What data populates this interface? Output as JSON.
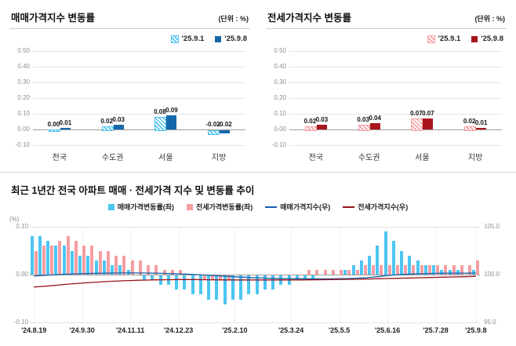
{
  "chart_data": [
    {
      "type": "bar",
      "title": "매매가격지수 변동률",
      "unit": "(단위 : %)",
      "categories": [
        "전국",
        "수도권",
        "서울",
        "지방"
      ],
      "series": [
        {
          "name": "'25.9.1",
          "color": "#54c3ee",
          "hatch": true,
          "values": [
            0.0,
            0.02,
            0.08,
            -0.02
          ]
        },
        {
          "name": "'25.9.8",
          "color": "#1668ab",
          "hatch": false,
          "values": [
            0.01,
            0.03,
            0.09,
            -0.02
          ]
        }
      ],
      "ylim": [
        -0.1,
        0.5
      ],
      "yticks": [
        0.5,
        0.4,
        0.3,
        0.2,
        0.1,
        0.0,
        -0.1
      ]
    },
    {
      "type": "bar",
      "title": "전세가격지수 변동률",
      "unit": "(단위 : %)",
      "categories": [
        "전국",
        "수도권",
        "서울",
        "지방"
      ],
      "series": [
        {
          "name": "'25.9.1",
          "color": "#f4a2a6",
          "hatch": true,
          "values": [
            0.02,
            0.03,
            0.07,
            0.02
          ]
        },
        {
          "name": "'25.9.8",
          "color": "#a8161c",
          "hatch": false,
          "values": [
            0.03,
            0.04,
            0.07,
            0.01
          ]
        }
      ],
      "ylim": [
        -0.1,
        0.5
      ],
      "yticks": [
        0.5,
        0.4,
        0.3,
        0.2,
        0.1,
        0.0,
        -0.1
      ]
    },
    {
      "type": "combo",
      "title": "최근 1년간 전국 아파트 매매 · 전세가격 지수 및 변동률 추이",
      "y_left": {
        "label": "(%)",
        "lim": [
          -0.1,
          0.1
        ],
        "ticks": [
          0.1,
          0.0,
          -0.1
        ]
      },
      "y_right": {
        "lim": [
          95.0,
          105.0
        ],
        "ticks": [
          105.0,
          100.0,
          95.0
        ]
      },
      "x_tick_labels": [
        "'24.8.19",
        "'24.9.30",
        "'24.11.11",
        "'24.12.23",
        "'25.2.10",
        "'25.3.24",
        "'25.5.5",
        "'25.6.16",
        "'25.7.28",
        "'25.9.8"
      ],
      "x_tick_indices": [
        0,
        6,
        12,
        18,
        25,
        32,
        38,
        44,
        50,
        55
      ],
      "bar_series": [
        {
          "name": "매매가격변동률(좌)",
          "color": "#4cc5f2",
          "values": [
            0.08,
            0.08,
            0.07,
            0.06,
            0.06,
            0.05,
            0.04,
            0.04,
            0.03,
            0.03,
            0.02,
            0.02,
            0.01,
            0.0,
            -0.01,
            -0.01,
            -0.02,
            -0.02,
            -0.03,
            -0.03,
            -0.04,
            -0.04,
            -0.05,
            -0.05,
            -0.06,
            -0.05,
            -0.05,
            -0.04,
            -0.04,
            -0.03,
            -0.03,
            -0.02,
            -0.02,
            -0.01,
            -0.01,
            -0.01,
            0.0,
            0.0,
            0.0,
            0.01,
            0.02,
            0.03,
            0.04,
            0.06,
            0.09,
            0.07,
            0.05,
            0.04,
            0.03,
            0.02,
            0.02,
            0.01,
            0.01,
            0.01,
            0.0,
            0.01
          ]
        },
        {
          "name": "전세가격변동률(좌)",
          "color": "#f59da1",
          "values": [
            0.05,
            0.06,
            0.06,
            0.07,
            0.08,
            0.07,
            0.06,
            0.06,
            0.05,
            0.05,
            0.04,
            0.04,
            0.03,
            0.03,
            0.02,
            0.02,
            0.01,
            0.01,
            0.01,
            0.0,
            0.0,
            -0.01,
            -0.01,
            -0.01,
            -0.01,
            0.0,
            0.0,
            0.0,
            0.0,
            0.0,
            0.0,
            0.0,
            0.0,
            0.0,
            0.01,
            0.01,
            0.01,
            0.01,
            0.01,
            0.01,
            0.01,
            0.02,
            0.02,
            0.02,
            0.02,
            0.02,
            0.02,
            0.02,
            0.02,
            0.02,
            0.02,
            0.02,
            0.02,
            0.02,
            0.02,
            0.03
          ]
        }
      ],
      "line_series": [
        {
          "name": "매매가격지수(우)",
          "color": "#1a5fa9",
          "values": [
            99.85,
            99.9,
            99.95,
            100.0,
            100.04,
            100.07,
            100.1,
            100.12,
            100.14,
            100.15,
            100.16,
            100.17,
            100.17,
            100.17,
            100.16,
            100.15,
            100.13,
            100.11,
            100.08,
            100.05,
            100.01,
            99.97,
            99.92,
            99.87,
            99.82,
            99.77,
            99.73,
            99.69,
            99.66,
            99.63,
            99.61,
            99.59,
            99.58,
            99.57,
            99.56,
            99.56,
            99.56,
            99.56,
            99.57,
            99.59,
            99.62,
            99.66,
            99.72,
            99.81,
            99.9,
            99.97,
            100.02,
            100.06,
            100.09,
            100.11,
            100.13,
            100.14,
            100.15,
            100.15,
            100.15,
            100.16
          ]
        },
        {
          "name": "전세가격지수(우)",
          "color": "#991417",
          "values": [
            98.7,
            98.76,
            98.83,
            98.9,
            98.98,
            99.05,
            99.11,
            99.17,
            99.22,
            99.27,
            99.31,
            99.35,
            99.38,
            99.41,
            99.43,
            99.45,
            99.46,
            99.47,
            99.48,
            99.48,
            99.48,
            99.47,
            99.46,
            99.45,
            99.44,
            99.44,
            99.44,
            99.44,
            99.44,
            99.44,
            99.44,
            99.44,
            99.44,
            99.44,
            99.45,
            99.46,
            99.47,
            99.48,
            99.49,
            99.5,
            99.51,
            99.53,
            99.55,
            99.57,
            99.59,
            99.61,
            99.63,
            99.65,
            99.67,
            99.69,
            99.71,
            99.73,
            99.75,
            99.77,
            99.79,
            99.82
          ]
        }
      ]
    }
  ]
}
